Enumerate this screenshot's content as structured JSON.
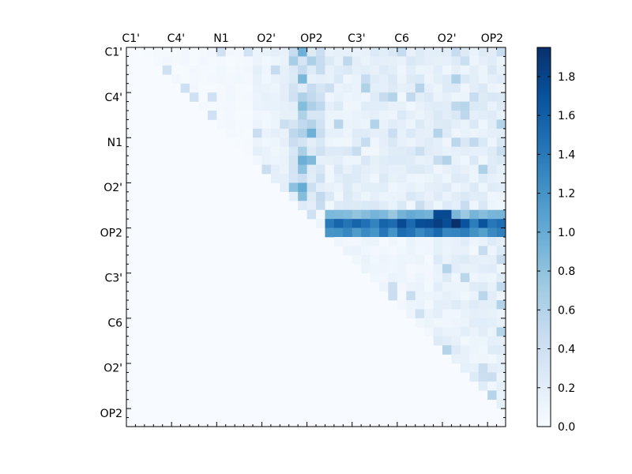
{
  "chart_data": {
    "type": "heatmap",
    "n": 42,
    "x_tick_labels": [
      "C1'",
      "C4'",
      "N1",
      "O2'",
      "OP2",
      "C3'",
      "C6",
      "O2'",
      "OP2"
    ],
    "x_tick_index": [
      0,
      5,
      10,
      15,
      20,
      25,
      30,
      35,
      40
    ],
    "y_tick_labels": [
      "C1'",
      "C4'",
      "N1",
      "O2'",
      "OP2",
      "C3'",
      "C6",
      "O2'",
      "OP2"
    ],
    "y_tick_index": [
      0,
      5,
      10,
      15,
      20,
      25,
      30,
      35,
      40
    ],
    "colorbar": {
      "min": 0.0,
      "max": 1.95,
      "tick_values": [
        0.0,
        0.2,
        0.4,
        0.6,
        0.8,
        1.0,
        1.2,
        1.4,
        1.6,
        1.8
      ],
      "tick_labels": [
        "0.0",
        "0.2",
        "0.4",
        "0.6",
        "0.8",
        "1.0",
        "1.2",
        "1.4",
        "1.6",
        "1.8"
      ]
    },
    "colormap": "Blues",
    "notable_values": {
      "band_rows": [
        18,
        19,
        20
      ],
      "band_start_col": 22,
      "band_values": [
        0.85,
        1.55,
        1.3
      ],
      "peak_value": 1.95
    }
  }
}
